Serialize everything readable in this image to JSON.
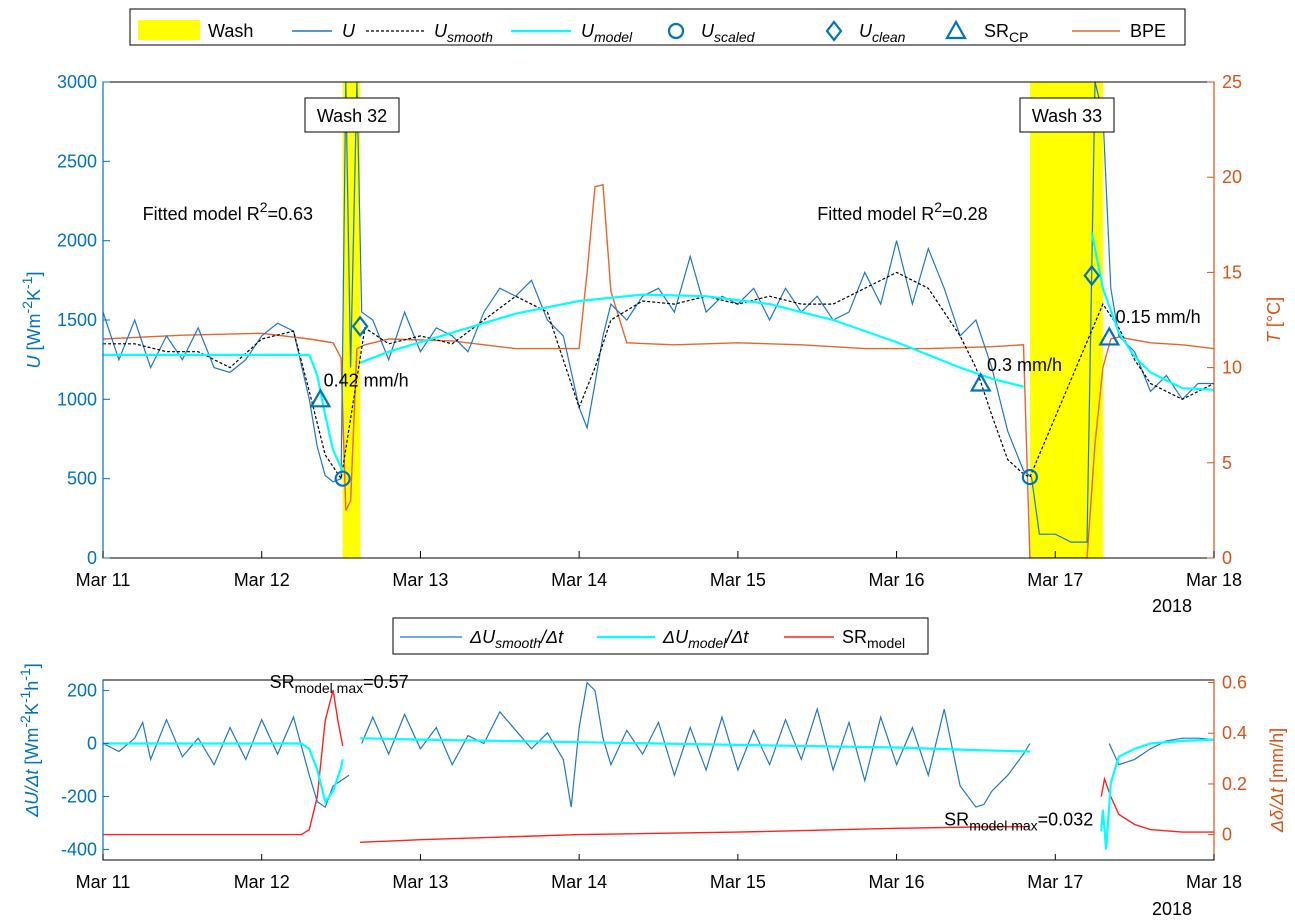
{
  "colors": {
    "U": "#1f77c4",
    "U_model": "#00ffff",
    "BPE": "#e8642a",
    "SR_model": "#ff2020",
    "wash": "#ffff00",
    "axis_left": "#0072bd",
    "axis_right": "#d95319"
  },
  "legend_top": [
    {
      "key": "wash",
      "label": "Wash",
      "sub": ""
    },
    {
      "key": "U",
      "label": "U",
      "sub": ""
    },
    {
      "key": "U_smooth",
      "label": "U",
      "sub": "smooth"
    },
    {
      "key": "U_model",
      "label": "U",
      "sub": "model"
    },
    {
      "key": "U_scaled",
      "label": "U",
      "sub": "scaled"
    },
    {
      "key": "U_clean",
      "label": "U",
      "sub": "clean"
    },
    {
      "key": "SR_CP",
      "label": "SR",
      "sub": "CP"
    },
    {
      "key": "BPE",
      "label": "BPE",
      "sub": ""
    }
  ],
  "legend_bottom": [
    {
      "key": "dU_smooth",
      "label": "ΔU",
      "sub": "smooth",
      "tail": "/Δt"
    },
    {
      "key": "dU_model",
      "label": "ΔU",
      "sub": "model",
      "tail": "/Δt"
    },
    {
      "key": "SR_model",
      "label": "SR",
      "sub": "model",
      "tail": ""
    }
  ],
  "chart_data": [
    {
      "type": "line",
      "x_axis": {
        "range": [
          "2018-03-11",
          "2018-03-18"
        ],
        "ticks": [
          "Mar 11",
          "Mar 12",
          "Mar 13",
          "Mar 14",
          "Mar 15",
          "Mar 16",
          "Mar 17",
          "Mar 18"
        ],
        "year": "2018"
      },
      "y_left": {
        "label": "U [Wm-2K-1]",
        "range": [
          0,
          3000
        ],
        "ticks": [
          0,
          500,
          1000,
          1500,
          2000,
          2500,
          3000
        ]
      },
      "y_right": {
        "label": "T [°C]",
        "range": [
          0,
          25
        ],
        "ticks": [
          0,
          5,
          10,
          15,
          20,
          25
        ]
      },
      "grid": false,
      "legend": "top-outside",
      "wash_periods": [
        {
          "label": "Wash 32",
          "start": 1.51,
          "end": 1.62
        },
        {
          "label": "Wash 33",
          "start": 5.84,
          "end": 6.3
        }
      ],
      "series": [
        {
          "name": "U",
          "x": [
            0,
            0.1,
            0.2,
            0.3,
            0.4,
            0.5,
            0.6,
            0.7,
            0.8,
            0.9,
            1.0,
            1.1,
            1.2,
            1.3,
            1.35,
            1.4,
            1.45,
            1.5,
            1.53,
            1.56,
            1.6,
            1.63,
            1.7,
            1.8,
            1.9,
            2.0,
            2.1,
            2.2,
            2.3,
            2.4,
            2.5,
            2.6,
            2.7,
            2.8,
            2.9,
            3.0,
            3.05,
            3.1,
            3.15,
            3.2,
            3.3,
            3.4,
            3.5,
            3.6,
            3.7,
            3.8,
            3.9,
            4.0,
            4.1,
            4.2,
            4.3,
            4.4,
            4.5,
            4.6,
            4.7,
            4.8,
            4.9,
            5.0,
            5.1,
            5.2,
            5.3,
            5.4,
            5.5,
            5.6,
            5.7,
            5.8,
            5.85,
            5.9,
            6.0,
            6.1,
            6.2,
            6.25,
            6.3,
            6.35,
            6.4,
            6.5,
            6.6,
            6.7,
            6.8,
            6.9,
            7.0
          ],
          "y": [
            1550,
            1250,
            1500,
            1200,
            1400,
            1250,
            1450,
            1200,
            1170,
            1250,
            1400,
            1480,
            1430,
            1000,
            700,
            520,
            480,
            500,
            3000,
            1200,
            3000,
            1550,
            1500,
            1250,
            1550,
            1300,
            1450,
            1400,
            1300,
            1550,
            1700,
            1650,
            1750,
            1500,
            1400,
            950,
            820,
            1100,
            1400,
            1600,
            1500,
            1650,
            1700,
            1550,
            1900,
            1550,
            1650,
            1600,
            1700,
            1500,
            1700,
            1550,
            1650,
            1500,
            1550,
            1800,
            1600,
            2000,
            1600,
            1950,
            1700,
            1400,
            1500,
            1200,
            800,
            550,
            510,
            150,
            150,
            100,
            100,
            3000,
            2800,
            1700,
            1400,
            1300,
            1050,
            1150,
            1000,
            1100,
            1100
          ]
        },
        {
          "name": "U smooth",
          "x": [
            0,
            0.2,
            0.4,
            0.6,
            0.8,
            1.0,
            1.2,
            1.3,
            1.4,
            1.5,
            1.65,
            1.8,
            2.0,
            2.2,
            2.4,
            2.6,
            2.8,
            3.0,
            3.1,
            3.2,
            3.4,
            3.6,
            3.8,
            4.0,
            4.2,
            4.4,
            4.6,
            4.8,
            5.0,
            5.2,
            5.4,
            5.5,
            5.6,
            5.7,
            5.8,
            5.84,
            6.3,
            6.4,
            6.5,
            6.6,
            6.8,
            7.0
          ],
          "y": [
            1350,
            1350,
            1300,
            1300,
            1200,
            1380,
            1430,
            1050,
            650,
            500,
            1450,
            1350,
            1400,
            1350,
            1500,
            1650,
            1550,
            950,
            1200,
            1500,
            1620,
            1600,
            1650,
            1600,
            1650,
            1600,
            1600,
            1700,
            1800,
            1700,
            1400,
            1200,
            900,
            620,
            530,
            510,
            1600,
            1450,
            1250,
            1100,
            1000,
            1100
          ]
        },
        {
          "name": "U model",
          "x": [
            0,
            0.5,
            1.0,
            1.3,
            1.35,
            1.4,
            1.45,
            1.5,
            1.51,
            1.62,
            1.8,
            2.2,
            2.6,
            3.0,
            3.4,
            3.8,
            4.2,
            4.6,
            5.0,
            5.4,
            5.6,
            5.8,
            6.23,
            6.3,
            6.4,
            6.5,
            6.6,
            6.8,
            7.0
          ],
          "y": [
            1280,
            1280,
            1280,
            1280,
            1150,
            900,
            680,
            570,
            540,
            1230,
            1300,
            1420,
            1540,
            1620,
            1660,
            1650,
            1600,
            1500,
            1360,
            1200,
            1130,
            1080,
            2050,
            1700,
            1420,
            1270,
            1170,
            1070,
            1060
          ]
        },
        {
          "name": "BPE",
          "x": [
            0,
            0.5,
            1.0,
            1.3,
            1.45,
            1.5,
            1.53,
            1.56,
            1.6,
            1.65,
            1.8,
            2.2,
            2.6,
            3.0,
            3.05,
            3.1,
            3.15,
            3.2,
            3.3,
            3.6,
            4.0,
            4.4,
            4.8,
            5.2,
            5.6,
            5.8,
            5.84,
            6.2,
            6.25,
            6.3,
            6.35,
            6.4,
            6.6,
            6.8,
            7.0
          ],
          "y": [
            11.5,
            11.7,
            11.8,
            11.5,
            11.3,
            10.5,
            2.5,
            3.0,
            11.0,
            11.2,
            11.5,
            11.4,
            11.0,
            11.0,
            15,
            19.5,
            19.6,
            14,
            11.3,
            11.2,
            11.3,
            11.2,
            11.0,
            11.0,
            11.1,
            11.2,
            0,
            0,
            6,
            10,
            11.5,
            11.6,
            11.3,
            11.2,
            11.0
          ]
        },
        {
          "name": "U scaled",
          "x": [
            1.51,
            5.84
          ],
          "y": [
            500,
            510
          ]
        },
        {
          "name": "U clean",
          "x": [
            1.62,
            6.23
          ],
          "y": [
            1460,
            1780
          ]
        },
        {
          "name": "SR CP",
          "x": [
            1.37,
            5.53,
            6.34
          ],
          "y": [
            1000,
            1100,
            1390
          ]
        }
      ],
      "annotations": [
        {
          "text": "Fitted model R",
          "sup": "2",
          "value": "=0.63",
          "x": 0.25,
          "y": 2130
        },
        {
          "text": "Fitted model R",
          "sup": "2",
          "value": "=0.28",
          "x": 4.5,
          "y": 2130
        },
        {
          "text": "0.42 mm/h",
          "x": 1.39,
          "y": 1080
        },
        {
          "text": "0.3 mm/h",
          "x": 5.57,
          "y": 1180
        },
        {
          "text": "0.15 mm/h",
          "x": 6.38,
          "y": 1480
        }
      ]
    },
    {
      "type": "line",
      "x_axis": {
        "range": [
          "2018-03-11",
          "2018-03-18"
        ],
        "ticks": [
          "Mar 11",
          "Mar 12",
          "Mar 13",
          "Mar 14",
          "Mar 15",
          "Mar 16",
          "Mar 17",
          "Mar 18"
        ],
        "year": "2018"
      },
      "y_left": {
        "label": "ΔU/Δt [Wm-2K-1h-1]",
        "range": [
          -440,
          240
        ],
        "ticks": [
          -400,
          -200,
          0,
          200
        ]
      },
      "y_right": {
        "label": "Δδ/Δt [mm/h]",
        "range": [
          -0.1,
          0.61
        ],
        "ticks": [
          0,
          0.2,
          0.4,
          0.6
        ]
      },
      "grid": false,
      "legend": "top-outside",
      "series": [
        {
          "name": "ΔU smooth/Δt",
          "x": [
            0,
            0.1,
            0.2,
            0.25,
            0.3,
            0.4,
            0.5,
            0.6,
            0.7,
            0.8,
            0.9,
            1.0,
            1.1,
            1.2,
            1.3,
            1.35,
            1.4,
            1.45,
            1.5,
            1.55,
            1.63,
            1.7,
            1.8,
            1.9,
            2.0,
            2.1,
            2.2,
            2.3,
            2.4,
            2.5,
            2.6,
            2.7,
            2.8,
            2.9,
            2.95,
            3.0,
            3.05,
            3.1,
            3.15,
            3.2,
            3.3,
            3.4,
            3.5,
            3.6,
            3.7,
            3.8,
            3.9,
            4.0,
            4.1,
            4.2,
            4.3,
            4.4,
            4.5,
            4.6,
            4.7,
            4.8,
            4.9,
            5.0,
            5.1,
            5.2,
            5.3,
            5.4,
            5.5,
            5.55,
            5.6,
            5.7,
            5.8,
            5.84,
            6.34,
            6.4,
            6.5,
            6.6,
            6.7,
            6.8,
            6.9,
            7.0
          ],
          "y": [
            0,
            -30,
            20,
            80,
            -60,
            90,
            -50,
            20,
            -80,
            60,
            -60,
            90,
            -40,
            100,
            -120,
            -220,
            -240,
            -160,
            -140,
            -120,
            0,
            100,
            -40,
            110,
            -20,
            60,
            -80,
            30,
            0,
            120,
            50,
            -20,
            40,
            -60,
            -240,
            60,
            230,
            200,
            20,
            -80,
            50,
            -40,
            80,
            -120,
            60,
            -100,
            100,
            -100,
            50,
            -80,
            90,
            -60,
            130,
            -100,
            80,
            -140,
            100,
            -80,
            60,
            -120,
            130,
            -160,
            -240,
            -230,
            -180,
            -120,
            -40,
            0,
            0,
            -80,
            -60,
            -20,
            10,
            20,
            20,
            15
          ]
        },
        {
          "name": "ΔU model/Δt",
          "x": [
            0,
            0.5,
            1.0,
            1.25,
            1.3,
            1.35,
            1.4,
            1.45,
            1.5,
            1.51,
            1.62,
            2.0,
            3.0,
            4.0,
            5.0,
            5.5,
            5.84,
            6.29,
            6.3,
            6.32,
            6.35,
            6.4,
            6.5,
            6.6,
            6.8,
            7.0
          ],
          "y": [
            0,
            0,
            0,
            0,
            -20,
            -100,
            -220,
            -180,
            -90,
            -60,
            20,
            15,
            5,
            -5,
            -15,
            -25,
            -30,
            -330,
            -250,
            -400,
            -150,
            -50,
            -20,
            0,
            10,
            15
          ]
        },
        {
          "name": "SR model",
          "x": [
            0,
            0.5,
            1.0,
            1.25,
            1.3,
            1.35,
            1.4,
            1.45,
            1.48,
            1.51,
            1.62,
            2.0,
            3.0,
            4.0,
            5.0,
            5.5,
            5.84,
            6.29,
            6.31,
            6.35,
            6.4,
            6.5,
            6.6,
            6.8,
            7.0
          ],
          "y": [
            0,
            0,
            0,
            0,
            0.02,
            0.15,
            0.45,
            0.57,
            0.45,
            0.35,
            -0.03,
            -0.02,
            0.0,
            0.01,
            0.025,
            0.03,
            0.032,
            0.15,
            0.22,
            0.15,
            0.08,
            0.04,
            0.02,
            0.01,
            0.01
          ]
        }
      ],
      "annotations": [
        {
          "text": "SR",
          "sub": "model max",
          "value": "=0.57",
          "x": 1.05,
          "y": 210
        },
        {
          "text": "SR",
          "sub": "model max",
          "value": "=0.032",
          "x": 5.3,
          "y": -310
        }
      ]
    }
  ]
}
